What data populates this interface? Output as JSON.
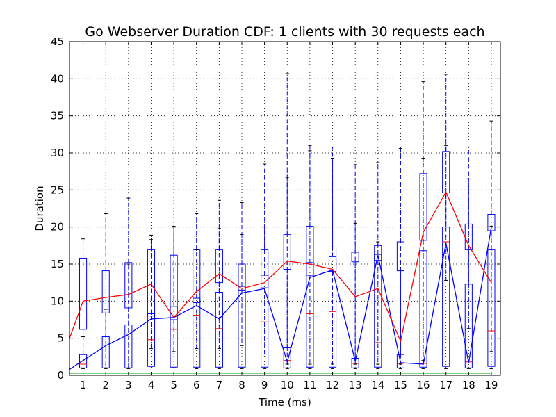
{
  "chart_data": {
    "type": "box",
    "title": "Go Webserver Duration CDF: 1 clients with 30 requests each",
    "xlabel": "Time (ms)",
    "ylabel": "Duration",
    "ylim": [
      0,
      45
    ],
    "yticks": [
      0,
      5,
      10,
      15,
      20,
      25,
      30,
      35,
      40,
      45
    ],
    "xticks": [
      1,
      2,
      3,
      4,
      5,
      6,
      7,
      8,
      9,
      10,
      11,
      12,
      13,
      14,
      15,
      16,
      17,
      18,
      19
    ],
    "grid": true,
    "boxes": [
      {
        "x": 1,
        "w_low": 0.9,
        "q1": 1.0,
        "med": 1.5,
        "q3": 2.8,
        "w_high": 5.2
      },
      {
        "x": 2,
        "w_low": 0.9,
        "q1": 1.0,
        "med": 3.8,
        "q3": 5.2,
        "w_high": 8.9
      },
      {
        "x": 3,
        "w_low": 0.9,
        "q1": 1.0,
        "med": 5.3,
        "q3": 6.8,
        "w_high": 15.0
      },
      {
        "x": 4,
        "w_low": 1.0,
        "q1": 1.2,
        "med": 4.8,
        "q3": 8.3,
        "w_high": 18.3
      },
      {
        "x": 5,
        "w_low": 1.0,
        "q1": 1.1,
        "med": 6.2,
        "q3": 9.3,
        "w_high": 20.1
      },
      {
        "x": 6,
        "w_low": 0.9,
        "q1": 1.1,
        "med": 8.1,
        "q3": 10.4,
        "w_high": 17.0
      },
      {
        "x": 7,
        "w_low": 0.9,
        "q1": 1.1,
        "med": 6.3,
        "q3": 11.2,
        "w_high": 19.8
      },
      {
        "x": 8,
        "w_low": 0.9,
        "q1": 1.1,
        "med": 8.4,
        "q3": 12.0,
        "w_high": 19.0
      },
      {
        "x": 9,
        "w_low": 0.9,
        "q1": 1.1,
        "med": 7.2,
        "q3": 13.5,
        "w_high": 20.0
      },
      {
        "x": 10,
        "w_low": 0.9,
        "q1": 1.0,
        "med": 2.0,
        "q3": 3.7,
        "w_high": 26.7
      },
      {
        "x": 11,
        "w_low": 0.9,
        "q1": 1.1,
        "med": 8.3,
        "q3": 15.2,
        "w_high": 30.3
      },
      {
        "x": 12,
        "w_low": 0.9,
        "q1": 1.1,
        "med": 8.6,
        "q3": 16.0,
        "w_high": 29.2
      },
      {
        "x": 13,
        "w_low": 0.9,
        "q1": 1.0,
        "med": 1.6,
        "q3": 2.3,
        "w_high": 20.5
      },
      {
        "x": 14,
        "w_low": 0.9,
        "q1": 1.1,
        "med": 4.4,
        "q3": 16.3,
        "w_high": 18.0
      },
      {
        "x": 15,
        "w_low": 0.9,
        "q1": 1.0,
        "med": 1.6,
        "q3": 2.8,
        "w_high": 21.9
      },
      {
        "x": 16,
        "w_low": 0.9,
        "q1": 1.1,
        "med": 1.6,
        "q3": 16.8,
        "w_high": 29.2
      },
      {
        "x": 17,
        "w_low": 0.9,
        "q1": 1.2,
        "med": 18.0,
        "q3": 20.0,
        "w_high": 31.0
      },
      {
        "x": 18,
        "w_low": 0.9,
        "q1": 1.0,
        "med": 1.8,
        "q3": 12.3,
        "w_high": 26.5
      },
      {
        "x": 19,
        "w_low": 0.9,
        "q1": 1.2,
        "med": 6.0,
        "q3": 17.0,
        "w_high": 20.1
      }
    ],
    "outer_boxes": [
      {
        "x": 1,
        "q1": 6.2,
        "q3": 15.8,
        "cap_low": 2.8,
        "cap_high": 18.4
      },
      {
        "x": 2,
        "q1": 8.4,
        "q3": 14.1,
        "cap_low": 1.0,
        "cap_high": 21.8
      },
      {
        "x": 3,
        "q1": 9.1,
        "q3": 15.2,
        "cap_low": 1.0,
        "cap_high": 23.9
      },
      {
        "x": 4,
        "q1": 8.0,
        "q3": 17.0,
        "cap_low": 3.6,
        "cap_high": 18.9
      },
      {
        "x": 5,
        "q1": 7.5,
        "q3": 16.2,
        "cap_low": 3.2,
        "cap_high": 20.0
      },
      {
        "x": 6,
        "q1": 9.8,
        "q3": 17.0,
        "cap_low": 3.6,
        "cap_high": 21.8
      },
      {
        "x": 7,
        "q1": 12.5,
        "q3": 17.0,
        "cap_low": 3.6,
        "cap_high": 23.6
      },
      {
        "x": 8,
        "q1": 11.5,
        "q3": 15.0,
        "cap_low": 4.0,
        "cap_high": 23.3
      },
      {
        "x": 9,
        "q1": 11.8,
        "q3": 17.0,
        "cap_low": 2.5,
        "cap_high": 28.5
      },
      {
        "x": 10,
        "q1": 14.3,
        "q3": 19.0,
        "cap_low": 1.5,
        "cap_high": 40.7
      },
      {
        "x": 11,
        "q1": 13.5,
        "q3": 20.1,
        "cap_low": 1.5,
        "cap_high": 31.0
      },
      {
        "x": 12,
        "q1": 14.0,
        "q3": 17.3,
        "cap_low": 1.5,
        "cap_high": 30.8
      },
      {
        "x": 13,
        "q1": 15.3,
        "q3": 16.6,
        "cap_low": 1.5,
        "cap_high": 28.4
      },
      {
        "x": 14,
        "q1": 15.5,
        "q3": 17.5,
        "cap_low": 1.5,
        "cap_high": 28.7
      },
      {
        "x": 15,
        "q1": 14.1,
        "q3": 18.0,
        "cap_low": 1.5,
        "cap_high": 30.6
      },
      {
        "x": 16,
        "q1": 18.2,
        "q3": 27.2,
        "cap_low": 2.0,
        "cap_high": 39.6
      },
      {
        "x": 17,
        "q1": 24.6,
        "q3": 30.2,
        "cap_low": 12.8,
        "cap_high": 40.6
      },
      {
        "x": 18,
        "q1": 17.0,
        "q3": 20.4,
        "cap_low": 6.3,
        "cap_high": 30.8
      },
      {
        "x": 19,
        "q1": 19.5,
        "q3": 21.7,
        "cap_low": 3.2,
        "cap_high": 34.3
      }
    ],
    "series": [
      {
        "color": "#0000ff",
        "values": [
          0.8,
          2.0,
          4.0,
          5.5,
          7.6,
          7.8,
          9.4,
          7.6,
          11.1,
          11.7,
          1.8,
          13.2,
          14.2,
          1.9,
          16.2,
          1.7,
          1.5,
          17.8,
          1.7,
          20.0
        ]
      },
      {
        "color": "#ff0000",
        "values": [
          5.0,
          10.0,
          10.5,
          10.9,
          12.3,
          7.8,
          11.3,
          13.7,
          11.7,
          12.5,
          15.4,
          15.0,
          14.3,
          10.6,
          11.7,
          4.6,
          19.3,
          24.7,
          17.5,
          12.5
        ]
      },
      {
        "color": "#00aa00",
        "values": [
          0.3,
          0.3,
          0.3,
          0.3,
          0.3,
          0.3,
          0.3,
          0.3,
          0.3,
          0.3,
          0.3,
          0.3,
          0.3,
          0.3,
          0.3,
          0.3,
          0.3,
          0.3,
          0.3,
          0.3
        ]
      }
    ],
    "series_x": [
      0.4,
      1,
      2,
      3,
      4,
      5,
      6,
      7,
      8,
      9,
      10,
      11,
      12,
      13,
      14,
      15,
      16,
      17,
      18,
      19
    ]
  }
}
